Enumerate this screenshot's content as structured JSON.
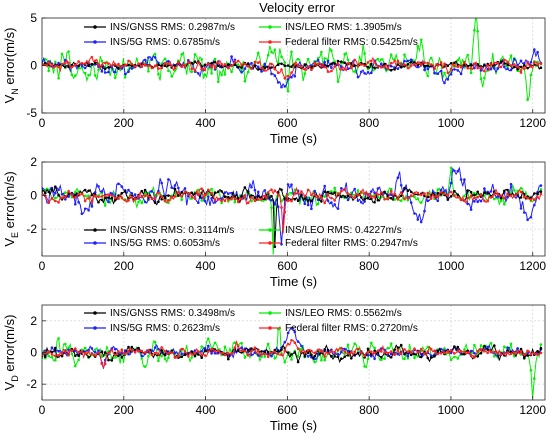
{
  "figure": {
    "title": "Velocity error"
  },
  "chart_data": [
    {
      "type": "line",
      "title": "Velocity error",
      "xlabel": "Time (s)",
      "ylabel_main": "V",
      "ylabel_sub": "N",
      "ylabel_rest": " error(m/s)",
      "xlim": [
        0,
        1230
      ],
      "ylim": [
        -5,
        5
      ],
      "xticks": [
        0,
        200,
        400,
        600,
        800,
        1000,
        1200
      ],
      "yticks": [
        -5,
        0,
        5
      ],
      "grid": true,
      "legend_position": "top",
      "series": [
        {
          "name": "INS/GNSS RMS: 0.2987m/s",
          "color": "#000000",
          "rms": 0.2987,
          "events": []
        },
        {
          "name": "INS/5G RMS: 0.6785m/s",
          "color": "#1f1fff",
          "rms": 0.6785,
          "events": [
            {
              "t": 590,
              "v": -2.2,
              "w": 25
            },
            {
              "t": 790,
              "v": -1.5,
              "w": 20
            },
            {
              "t": 990,
              "v": -1.2,
              "w": 25
            },
            {
              "t": 1205,
              "v": 0.8,
              "w": 10
            }
          ]
        },
        {
          "name": "INS/LEO RMS: 1.3905m/s",
          "color": "#00ee00",
          "rms": 1.3905,
          "events": [
            {
              "t": 930,
              "v": 3.5,
              "w": 5
            },
            {
              "t": 1060,
              "v": 4.5,
              "w": 5
            },
            {
              "t": 1190,
              "v": -4.5,
              "w": 5
            },
            {
              "t": 600,
              "v": -3.5,
              "w": 5
            }
          ]
        },
        {
          "name": "Federal filter RMS: 0.5425m/s",
          "color": "#ff2020",
          "rms": 0.5425,
          "events": [
            {
              "t": 590,
              "v": -1.2,
              "w": 20
            }
          ]
        }
      ]
    },
    {
      "type": "line",
      "xlabel": "Time (s)",
      "ylabel_main": "V",
      "ylabel_sub": "E",
      "ylabel_rest": " error(m/s)",
      "xlim": [
        0,
        1230
      ],
      "ylim": [
        -3.6,
        2
      ],
      "xticks": [
        0,
        200,
        400,
        600,
        800,
        1000,
        1200
      ],
      "yticks": [
        -2,
        0,
        2
      ],
      "grid": true,
      "legend_position": "bottom",
      "series": [
        {
          "name": "INS/GNSS RMS: 0.3114m/s",
          "color": "#000000",
          "rms": 0.3114,
          "events": [
            {
              "t": 570,
              "v": -3.2,
              "w": 3
            }
          ]
        },
        {
          "name": "INS/5G RMS: 0.6053m/s",
          "color": "#1f1fff",
          "rms": 0.6053,
          "events": [
            {
              "t": 105,
              "v": -1.3,
              "w": 15
            },
            {
              "t": 585,
              "v": -2.8,
              "w": 5
            },
            {
              "t": 920,
              "v": -1.4,
              "w": 20
            },
            {
              "t": 880,
              "v": 1.1,
              "w": 15
            },
            {
              "t": 1010,
              "v": 1.2,
              "w": 20
            },
            {
              "t": 1190,
              "v": -1.3,
              "w": 15
            }
          ]
        },
        {
          "name": "INS/LEO RMS: 0.4227m/s",
          "color": "#00ee00",
          "rms": 0.4227,
          "events": [
            {
              "t": 565,
              "v": -3.4,
              "w": 3
            },
            {
              "t": 1000,
              "v": 1.8,
              "w": 4
            }
          ]
        },
        {
          "name": "Federal filter RMS: 0.2947m/s",
          "color": "#ff2020",
          "rms": 0.2947,
          "events": [
            {
              "t": 590,
              "v": -2.5,
              "w": 4
            }
          ]
        }
      ]
    },
    {
      "type": "line",
      "xlabel": "Time (s)",
      "ylabel_main": "V",
      "ylabel_sub": "D",
      "ylabel_rest": " error(m/s)",
      "xlim": [
        0,
        1230
      ],
      "ylim": [
        -3,
        3
      ],
      "xticks": [
        0,
        200,
        400,
        600,
        800,
        1000,
        1200
      ],
      "yticks": [
        -2,
        0,
        2
      ],
      "grid": true,
      "legend_position": "top",
      "series": [
        {
          "name": "INS/GNSS RMS: 0.3498m/s",
          "color": "#000000",
          "rms": 0.3498,
          "events": []
        },
        {
          "name": "INS/5G RMS: 0.2623m/s",
          "color": "#1f1fff",
          "rms": 0.2623,
          "events": [
            {
              "t": 150,
              "v": -1.2,
              "w": 6
            },
            {
              "t": 610,
              "v": 1.4,
              "w": 15
            }
          ]
        },
        {
          "name": "INS/LEO RMS: 0.5562m/s",
          "color": "#00ee00",
          "rms": 0.5562,
          "events": [
            {
              "t": 580,
              "v": 2.4,
              "w": 4
            },
            {
              "t": 1200,
              "v": -2.6,
              "w": 4
            }
          ]
        },
        {
          "name": "Federal filter RMS: 0.2720m/s",
          "color": "#ff2020",
          "rms": 0.272,
          "events": [
            {
              "t": 610,
              "v": 1.0,
              "w": 15
            },
            {
              "t": 150,
              "v": -0.8,
              "w": 6
            }
          ]
        }
      ]
    }
  ]
}
